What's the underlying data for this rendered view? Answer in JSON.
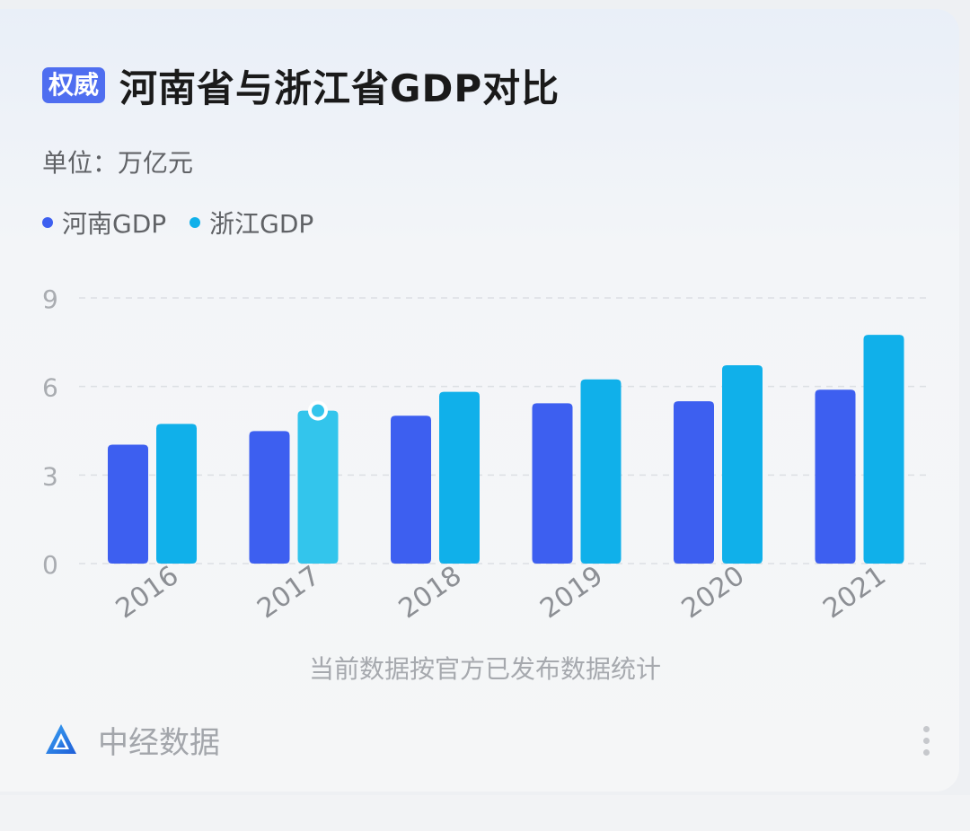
{
  "header": {
    "badge": "权威",
    "title": "河南省与浙江省GDP对比",
    "unit": "单位：万亿元"
  },
  "legend": [
    {
      "label": "河南GDP",
      "color": "#3d5ff0"
    },
    {
      "label": "浙江GDP",
      "color": "#10b0ea"
    }
  ],
  "chart_data": {
    "type": "bar",
    "categories": [
      "2016",
      "2017",
      "2018",
      "2019",
      "2020",
      "2021"
    ],
    "series": [
      {
        "name": "河南GDP",
        "color": "#3d5ff0",
        "values": [
          4.03,
          4.49,
          5.01,
          5.43,
          5.5,
          5.89
        ]
      },
      {
        "name": "浙江GDP",
        "color": "#10b0ea",
        "values": [
          4.73,
          5.18,
          5.82,
          6.24,
          6.72,
          7.75
        ]
      }
    ],
    "highlight": {
      "series": 1,
      "index": 1,
      "color": "#33c5ec"
    },
    "ylim": [
      0,
      9
    ],
    "yticks": [
      0,
      3,
      6,
      9
    ],
    "grid": true,
    "legend_position": "top-left"
  },
  "footer": {
    "note": "当前数据按官方已发布数据统计",
    "brand": "中经数据",
    "brand_icon": "zhongjing-logo-icon",
    "menu_icon": "more-vertical-icon"
  }
}
